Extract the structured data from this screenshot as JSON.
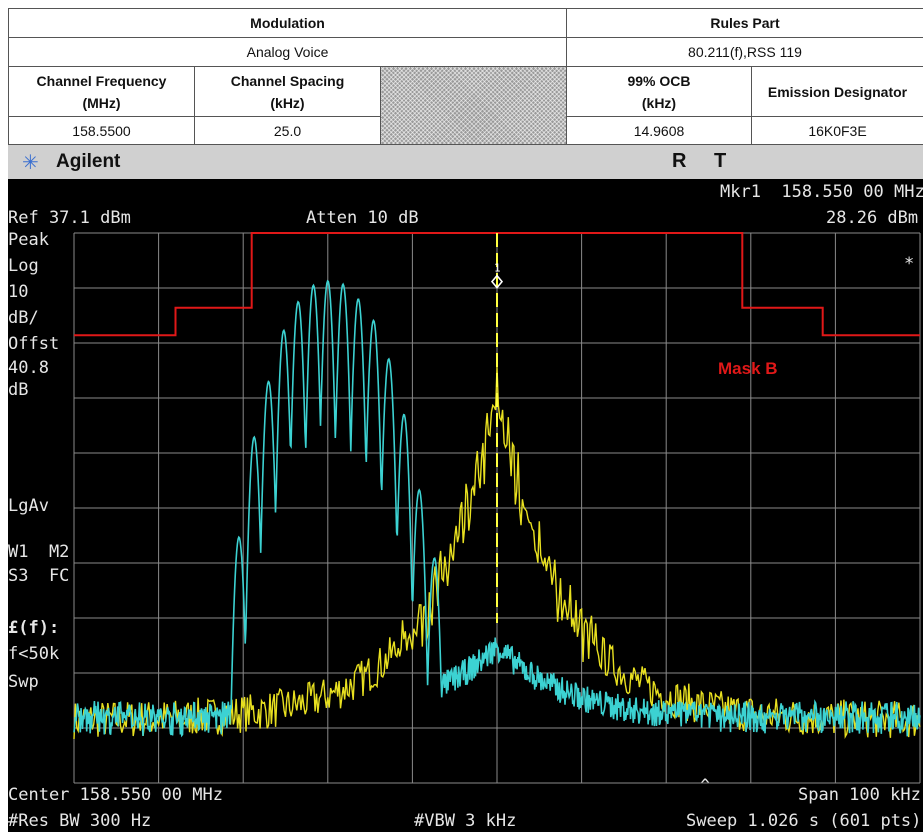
{
  "table": {
    "modulation_header": "Modulation",
    "rules_header": "Rules Part",
    "modulation": "Analog Voice",
    "rules": "80.211(f),RSS 119",
    "col_channel_freq": "Channel Frequency\n(MHz)",
    "col_channel_spacing": "Channel Spacing\n(kHz)",
    "col_ocb": "99% OCB\n(kHz)",
    "col_emission": "Emission Designator",
    "channel_freq": "158.5500",
    "channel_spacing": "25.0",
    "ocb": "14.9608",
    "emission": "16K0F3E"
  },
  "analyzer": {
    "brand": "Agilent",
    "r_indicator": "R",
    "t_indicator": "T",
    "marker_readout_freq": "Mkr1  158.550 00 MHz",
    "marker_readout_level": "28.26 dBm",
    "ref_level": "Ref 37.1 dBm",
    "attenuation": "Atten 10 dB",
    "side_labels": [
      "Peak",
      "Log",
      "10",
      "dB/",
      "Offst",
      "40.8",
      "dB"
    ],
    "lgav": "LgAv",
    "w1m2": "W1  M2",
    "s3fc": "S3  FC",
    "ef_label": "£(f):",
    "f50k": "f<50k",
    "swp": "Swp",
    "asterisk": "*",
    "caret": "^",
    "center": "Center 158.550 00 MHz",
    "span": "Span 100 kHz",
    "res_bw": "#Res BW 300 Hz",
    "vbw": "#VBW 3 kHz",
    "sweep": "Sweep 1.026 s (601 pts)",
    "mask_label": "Mask B",
    "marker_number": "1"
  },
  "colors": {
    "screen_bg": "#000000",
    "grid": "#8a8a8a",
    "mask": "#e01818",
    "trace_max": "#3cd2d2",
    "trace_avg": "#e8e020",
    "marker": "#ffff40"
  },
  "chart_data": {
    "type": "line",
    "title": "",
    "xlabel": "",
    "ylabel": "",
    "x_unit": "MHz",
    "y_unit": "dBm",
    "x_center": 158.55,
    "x_span_khz": 100,
    "xlim": [
      158.5,
      158.6
    ],
    "ylim": [
      -62.9,
      37.1
    ],
    "grid": true,
    "ref_level_dbm": 37.1,
    "scale_db_per_div": 10,
    "mask": {
      "name": "Mask B",
      "points": [
        [
          158.5,
          18.5
        ],
        [
          158.512,
          18.5
        ],
        [
          158.512,
          23.5
        ],
        [
          158.521,
          23.5
        ],
        [
          158.521,
          37.1
        ],
        [
          158.579,
          37.1
        ],
        [
          158.579,
          23.5
        ],
        [
          158.5885,
          23.5
        ],
        [
          158.5885,
          18.5
        ],
        [
          158.6,
          18.5
        ]
      ]
    },
    "series": [
      {
        "name": "",
        "role": "max_hold",
        "peaks": [
          [
            158.5195,
            -18.2
          ],
          [
            158.5213,
            0.0
          ],
          [
            158.523,
            10.1
          ],
          [
            158.5248,
            19.4
          ],
          [
            158.5265,
            24.6
          ],
          [
            158.5283,
            27.6
          ],
          [
            158.53,
            28.4
          ],
          [
            158.5318,
            27.8
          ],
          [
            158.5336,
            25.1
          ],
          [
            158.5354,
            21.2
          ],
          [
            158.5372,
            14.2
          ],
          [
            158.539,
            4.1
          ],
          [
            158.5408,
            -9.6
          ],
          [
            158.5426,
            -22.0
          ]
        ],
        "floor_dbm": -52.0
      },
      {
        "name": "",
        "role": "average",
        "peak_dbm": 7.5,
        "floor_dbm": -51.5
      }
    ],
    "marker": {
      "label": "1",
      "x": 158.55,
      "y": 28.26
    }
  }
}
